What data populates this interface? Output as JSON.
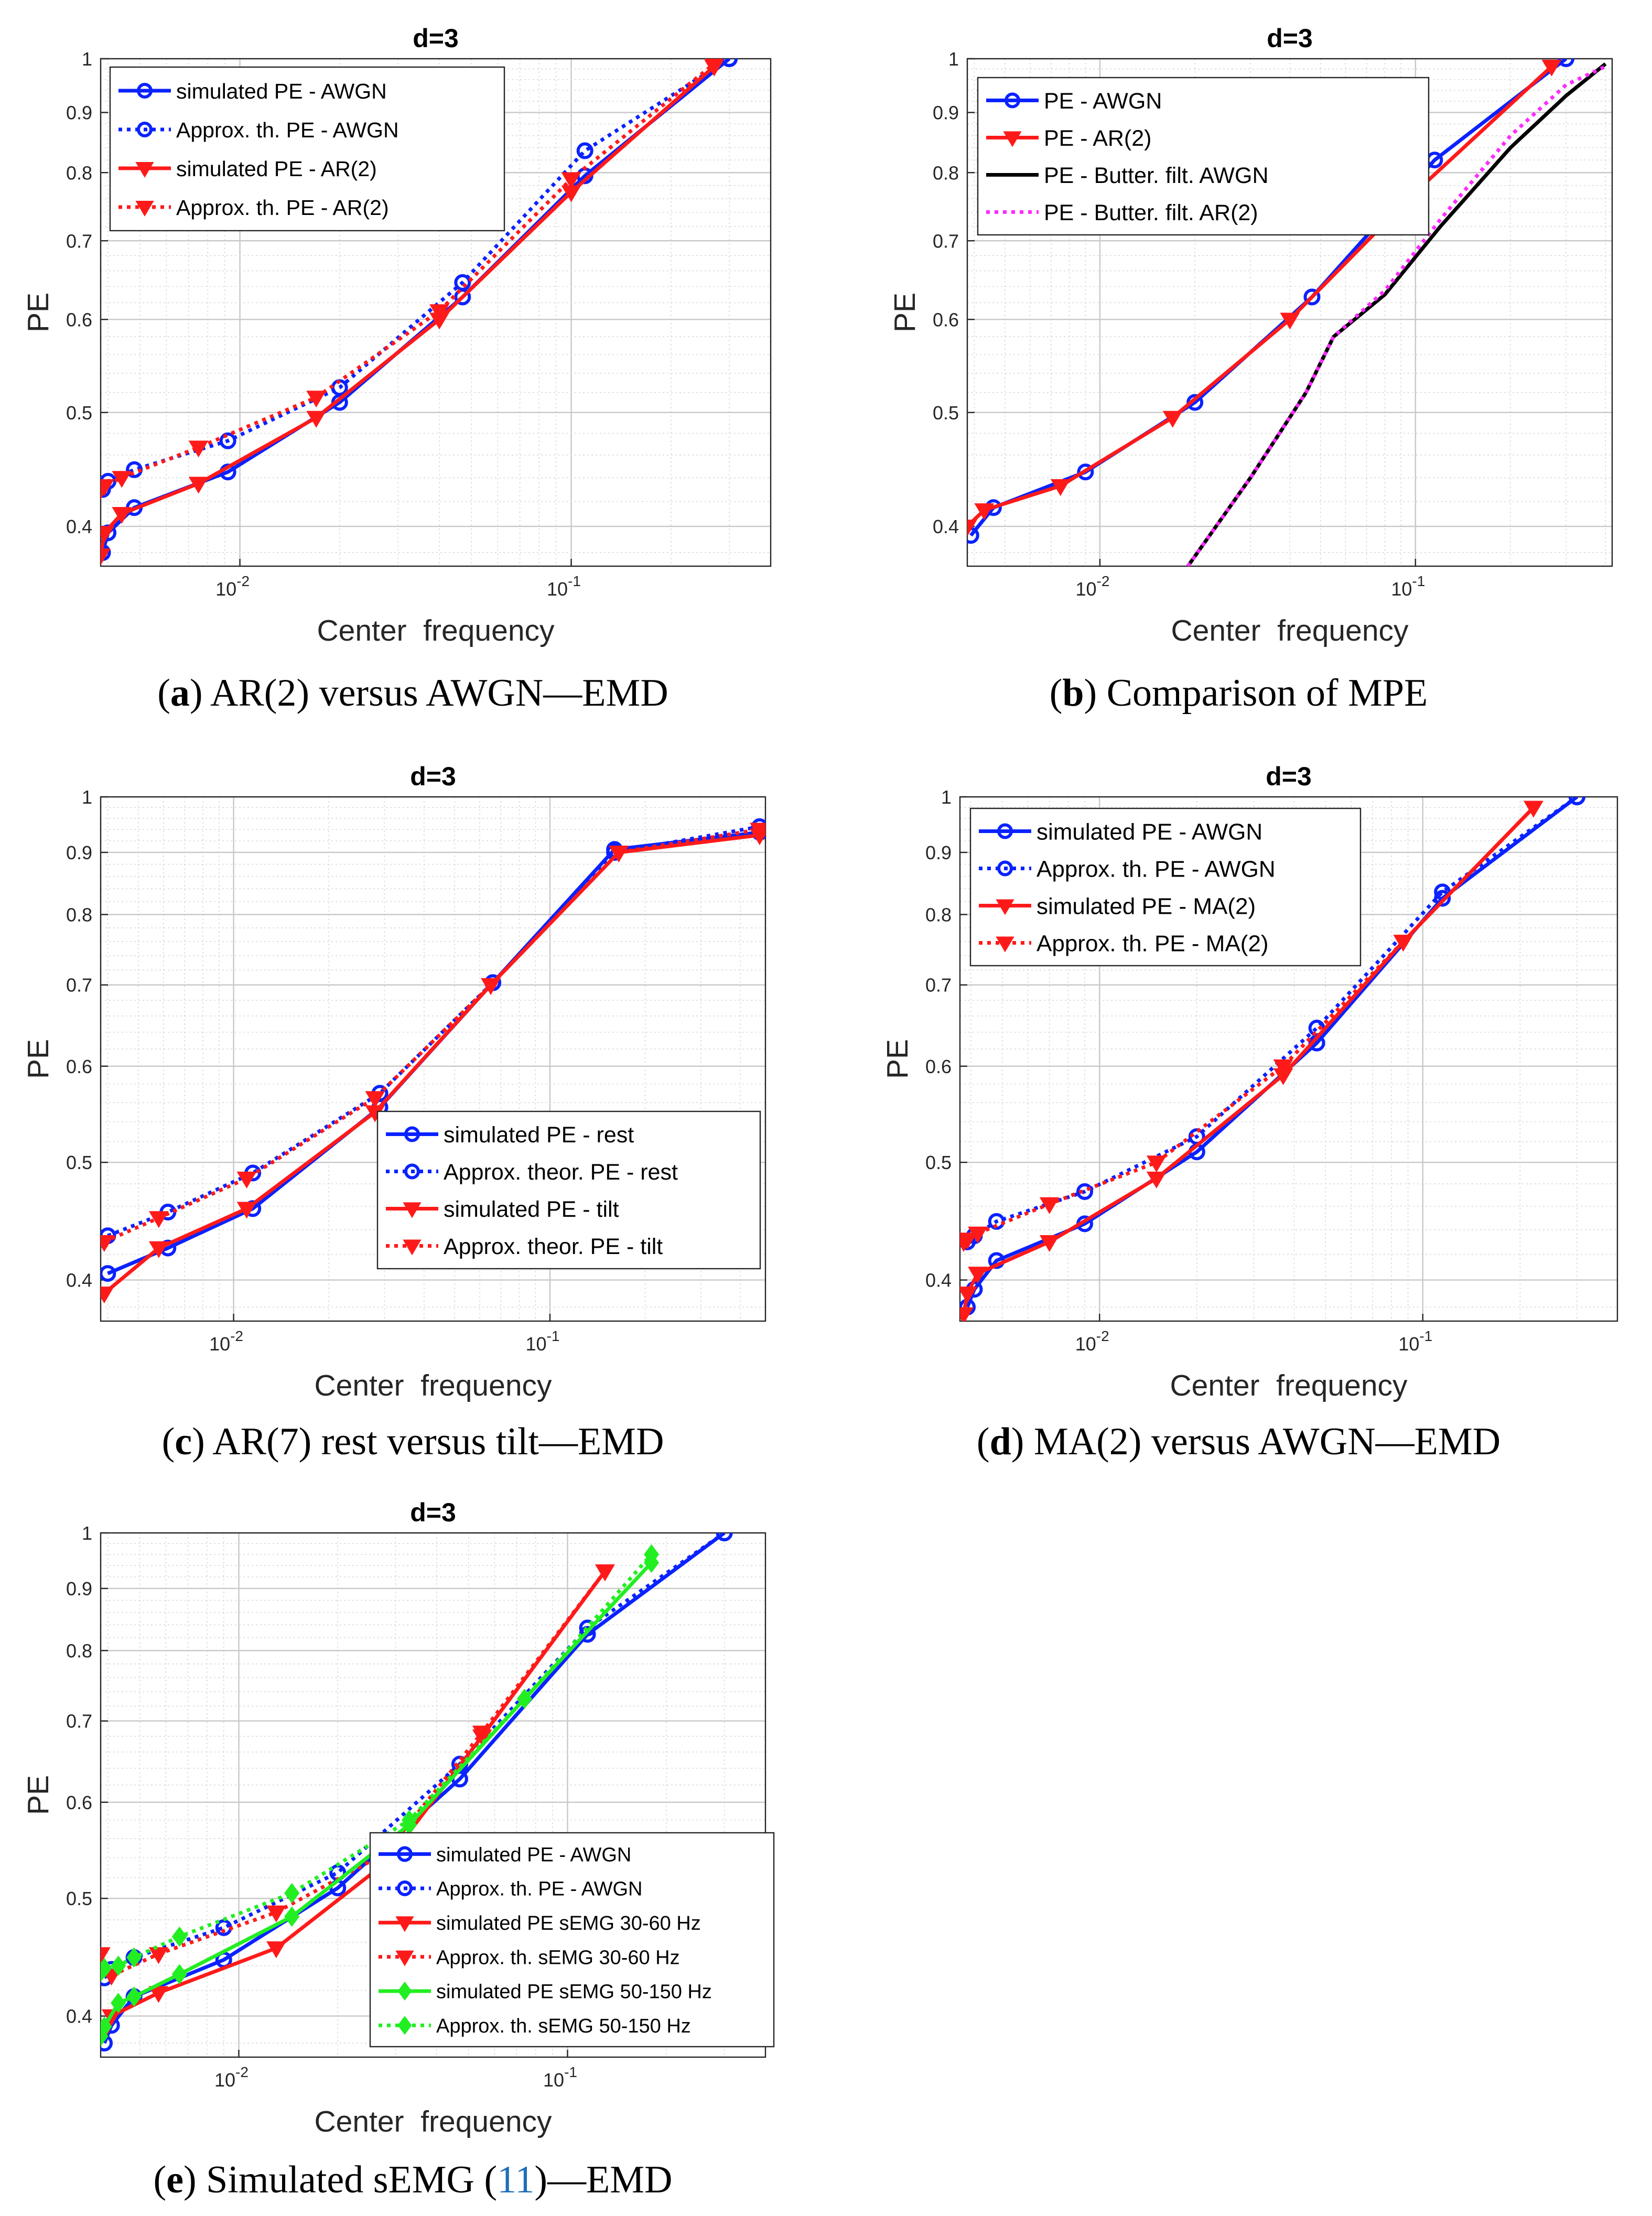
{
  "colors": {
    "blue": "#0a22ff",
    "red": "#ff1a1a",
    "black": "#000000",
    "magenta": "#ff2aff",
    "green": "#22ee22",
    "grid": "#d9d9d9",
    "cite": "#1f6fb6"
  },
  "chart_data": [
    {
      "id": "a",
      "type": "line",
      "title": "d=3",
      "xlabel": "Center  frequency",
      "ylabel": "PE",
      "xscale": "log",
      "yscale": "log",
      "xlim": [
        0.0038,
        0.4
      ],
      "ylim": [
        0.37,
        1.0
      ],
      "xticks": [
        {
          "v": 0.01,
          "label": "10",
          "exp": "-2"
        },
        {
          "v": 0.1,
          "label": "10",
          "exp": "-1"
        }
      ],
      "yticks": [
        {
          "v": 0.4,
          "label": "0.4"
        },
        {
          "v": 0.5,
          "label": "0.5"
        },
        {
          "v": 0.6,
          "label": "0.6"
        },
        {
          "v": 0.7,
          "label": "0.7"
        },
        {
          "v": 0.8,
          "label": "0.8"
        },
        {
          "v": 0.9,
          "label": "0.9"
        },
        {
          "v": 1.0,
          "label": "1"
        }
      ],
      "legend_position": "top-left",
      "caption": {
        "letter": "a",
        "text": " AR(2) versus AWGN—EMD"
      },
      "series": [
        {
          "name": "simulated PE - AWGN",
          "color": "#0a22ff",
          "dash": "solid",
          "marker": "circle",
          "x": [
            0.00385,
            0.004,
            0.0048,
            0.0092,
            0.02,
            0.047,
            0.11,
            0.3
          ],
          "y": [
            0.38,
            0.395,
            0.415,
            0.445,
            0.51,
            0.627,
            0.795,
            1.0
          ]
        },
        {
          "name": "Approx. th. PE - AWGN",
          "color": "#0a22ff",
          "dash": "dot",
          "marker": "circle",
          "x": [
            0.00385,
            0.004,
            0.0048,
            0.0092,
            0.02,
            0.047,
            0.11,
            0.3
          ],
          "y": [
            0.43,
            0.437,
            0.447,
            0.473,
            0.525,
            0.645,
            0.835,
            1.0
          ]
        },
        {
          "name": "simulated PE - AR(2)",
          "color": "#ff1a1a",
          "dash": "solid",
          "marker": "triangle",
          "x": [
            0.0038,
            0.0039,
            0.0044,
            0.0075,
            0.017,
            0.04,
            0.1,
            0.27
          ],
          "y": [
            0.378,
            0.395,
            0.41,
            0.435,
            0.495,
            0.6,
            0.77,
            0.985
          ]
        },
        {
          "name": "Approx. th. PE - AR(2)",
          "color": "#ff1a1a",
          "dash": "dot",
          "marker": "triangle",
          "x": [
            0.0038,
            0.0039,
            0.0044,
            0.0075,
            0.017,
            0.04,
            0.1,
            0.27
          ],
          "y": [
            0.43,
            0.433,
            0.44,
            0.467,
            0.515,
            0.61,
            0.79,
            0.99
          ]
        }
      ]
    },
    {
      "id": "b",
      "type": "line",
      "title": "d=3",
      "xlabel": "Center  frequency",
      "ylabel": "PE",
      "xscale": "log",
      "yscale": "log",
      "xlim": [
        0.0038,
        0.42
      ],
      "ylim": [
        0.37,
        1.0
      ],
      "xticks": [
        {
          "v": 0.01,
          "label": "10",
          "exp": "-2"
        },
        {
          "v": 0.1,
          "label": "10",
          "exp": "-1"
        }
      ],
      "yticks": [
        {
          "v": 0.4,
          "label": "0.4"
        },
        {
          "v": 0.5,
          "label": "0.5"
        },
        {
          "v": 0.6,
          "label": "0.6"
        },
        {
          "v": 0.7,
          "label": "0.7"
        },
        {
          "v": 0.8,
          "label": "0.8"
        },
        {
          "v": 0.9,
          "label": "0.9"
        },
        {
          "v": 1.0,
          "label": "1"
        }
      ],
      "legend_position": "top-left",
      "caption": {
        "letter": "b",
        "text": " Comparison of MPE"
      },
      "series": [
        {
          "name": "PE - AWGN",
          "color": "#0a22ff",
          "dash": "solid",
          "marker": "circle",
          "x": [
            0.0039,
            0.0046,
            0.009,
            0.02,
            0.047,
            0.115,
            0.3
          ],
          "y": [
            0.393,
            0.415,
            0.445,
            0.51,
            0.627,
            0.82,
            1.0
          ]
        },
        {
          "name": "PE - AR(2)",
          "color": "#ff1a1a",
          "dash": "solid",
          "marker": "triangle",
          "x": [
            0.0038,
            0.0043,
            0.0075,
            0.017,
            0.04,
            0.1,
            0.27
          ],
          "y": [
            0.4,
            0.413,
            0.433,
            0.495,
            0.6,
            0.77,
            0.985
          ]
        },
        {
          "name": "PE - Butter. filt. AWGN",
          "color": "#000000",
          "dash": "solid",
          "marker": "none",
          "x": [
            0.019,
            0.03,
            0.045,
            0.055,
            0.08,
            0.12,
            0.2,
            0.3,
            0.4
          ],
          "y": [
            0.37,
            0.44,
            0.52,
            0.58,
            0.63,
            0.72,
            0.84,
            0.93,
            0.99
          ]
        },
        {
          "name": "PE - Butter. filt. AR(2)",
          "color": "#ff2aff",
          "dash": "dot",
          "marker": "none",
          "x": [
            0.019,
            0.03,
            0.045,
            0.055,
            0.08,
            0.12,
            0.2,
            0.3,
            0.4
          ],
          "y": [
            0.37,
            0.44,
            0.52,
            0.58,
            0.635,
            0.73,
            0.86,
            0.95,
            0.985
          ]
        }
      ]
    },
    {
      "id": "c",
      "type": "line",
      "title": "d=3",
      "xlabel": "Center  frequency",
      "ylabel": "PE",
      "xscale": "log",
      "yscale": "log",
      "xlim": [
        0.0038,
        0.48
      ],
      "ylim": [
        0.37,
        1.0
      ],
      "xticks": [
        {
          "v": 0.01,
          "label": "10",
          "exp": "-2"
        },
        {
          "v": 0.1,
          "label": "10",
          "exp": "-1"
        }
      ],
      "yticks": [
        {
          "v": 0.4,
          "label": "0.4"
        },
        {
          "v": 0.5,
          "label": "0.5"
        },
        {
          "v": 0.6,
          "label": "0.6"
        },
        {
          "v": 0.7,
          "label": "0.7"
        },
        {
          "v": 0.8,
          "label": "0.8"
        },
        {
          "v": 0.9,
          "label": "0.9"
        },
        {
          "v": 1.0,
          "label": "1"
        }
      ],
      "legend_position": "bottom-right",
      "caption": {
        "letter": "c",
        "text": " AR(7) rest versus tilt—EMD"
      },
      "series": [
        {
          "name": "simulated PE - rest",
          "color": "#0a22ff",
          "dash": "solid",
          "marker": "circle",
          "x": [
            0.004,
            0.0062,
            0.0115,
            0.029,
            0.066,
            0.16,
            0.46
          ],
          "y": [
            0.405,
            0.425,
            0.458,
            0.555,
            0.703,
            0.905,
            0.935
          ]
        },
        {
          "name": "Approx. theor. PE - rest",
          "color": "#0a22ff",
          "dash": "dot",
          "marker": "circle",
          "x": [
            0.004,
            0.0062,
            0.0115,
            0.029,
            0.066,
            0.16,
            0.46
          ],
          "y": [
            0.435,
            0.455,
            0.49,
            0.57,
            0.703,
            0.9,
            0.945
          ]
        },
        {
          "name": "simulated PE - tilt",
          "color": "#ff1a1a",
          "dash": "solid",
          "marker": "triangle",
          "x": [
            0.0039,
            0.0058,
            0.011,
            0.028,
            0.065,
            0.165,
            0.46
          ],
          "y": [
            0.39,
            0.425,
            0.458,
            0.55,
            0.7,
            0.9,
            0.93
          ]
        },
        {
          "name": "Approx. theor. PE - tilt",
          "color": "#ff1a1a",
          "dash": "dot",
          "marker": "triangle",
          "x": [
            0.0039,
            0.0058,
            0.011,
            0.028,
            0.065,
            0.165,
            0.46
          ],
          "y": [
            0.43,
            0.45,
            0.485,
            0.565,
            0.7,
            0.9,
            0.94
          ]
        }
      ]
    },
    {
      "id": "d",
      "type": "line",
      "title": "d=3",
      "xlabel": "Center  frequency",
      "ylabel": "PE",
      "xscale": "log",
      "yscale": "log",
      "xlim": [
        0.0037,
        0.4
      ],
      "ylim": [
        0.37,
        1.0
      ],
      "xticks": [
        {
          "v": 0.01,
          "label": "10",
          "exp": "-2"
        },
        {
          "v": 0.1,
          "label": "10",
          "exp": "-1"
        }
      ],
      "yticks": [
        {
          "v": 0.4,
          "label": "0.4"
        },
        {
          "v": 0.5,
          "label": "0.5"
        },
        {
          "v": 0.6,
          "label": "0.6"
        },
        {
          "v": 0.7,
          "label": "0.7"
        },
        {
          "v": 0.8,
          "label": "0.8"
        },
        {
          "v": 0.9,
          "label": "0.9"
        },
        {
          "v": 1.0,
          "label": "1"
        }
      ],
      "legend_position": "top-left",
      "caption": {
        "letter": "d",
        "text": " MA(2) versus AWGN—EMD"
      },
      "series": [
        {
          "name": "simulated PE - AWGN",
          "color": "#0a22ff",
          "dash": "solid",
          "marker": "circle",
          "x": [
            0.0039,
            0.0041,
            0.0048,
            0.009,
            0.02,
            0.047,
            0.115,
            0.3
          ],
          "y": [
            0.38,
            0.393,
            0.415,
            0.445,
            0.51,
            0.627,
            0.825,
            1.0
          ]
        },
        {
          "name": "Approx. th. PE - AWGN",
          "color": "#0a22ff",
          "dash": "dot",
          "marker": "circle",
          "x": [
            0.0039,
            0.0041,
            0.0048,
            0.009,
            0.02,
            0.047,
            0.115,
            0.3
          ],
          "y": [
            0.43,
            0.435,
            0.447,
            0.473,
            0.525,
            0.645,
            0.835,
            1.0
          ]
        },
        {
          "name": "simulated PE - MA(2)",
          "color": "#ff1a1a",
          "dash": "solid",
          "marker": "triangle",
          "x": [
            0.0038,
            0.0039,
            0.0042,
            0.007,
            0.015,
            0.037,
            0.087,
            0.22
          ],
          "y": [
            0.375,
            0.39,
            0.405,
            0.43,
            0.485,
            0.59,
            0.76,
            0.98
          ]
        },
        {
          "name": "Approx. th. PE - MA(2)",
          "color": "#ff1a1a",
          "dash": "dot",
          "marker": "triangle",
          "x": [
            0.0038,
            0.0039,
            0.0042,
            0.007,
            0.015,
            0.037,
            0.087,
            0.22
          ],
          "y": [
            0.43,
            0.432,
            0.437,
            0.462,
            0.5,
            0.6,
            0.76,
            0.98
          ]
        }
      ]
    },
    {
      "id": "e",
      "type": "line",
      "title": "d=3",
      "xlabel": "Center  frequency",
      "ylabel": "PE",
      "xscale": "log",
      "yscale": "log",
      "xlim": [
        0.0038,
        0.4
      ],
      "ylim": [
        0.37,
        1.0
      ],
      "xticks": [
        {
          "v": 0.01,
          "label": "10",
          "exp": "-2"
        },
        {
          "v": 0.1,
          "label": "10",
          "exp": "-1"
        }
      ],
      "yticks": [
        {
          "v": 0.4,
          "label": "0.4"
        },
        {
          "v": 0.5,
          "label": "0.5"
        },
        {
          "v": 0.6,
          "label": "0.6"
        },
        {
          "v": 0.7,
          "label": "0.7"
        },
        {
          "v": 0.8,
          "label": "0.8"
        },
        {
          "v": 0.9,
          "label": "0.9"
        },
        {
          "v": 1.0,
          "label": "1"
        }
      ],
      "legend_position": "bottom-right",
      "caption": {
        "letter": "e",
        "text": " Simulated sEMG (",
        "cite": "11",
        "after": ")—EMD"
      },
      "series": [
        {
          "name": "simulated PE - AWGN",
          "color": "#0a22ff",
          "dash": "solid",
          "marker": "circle",
          "x": [
            0.0039,
            0.0041,
            0.0048,
            0.009,
            0.02,
            0.047,
            0.115,
            0.3
          ],
          "y": [
            0.38,
            0.393,
            0.415,
            0.445,
            0.51,
            0.627,
            0.825,
            1.0
          ]
        },
        {
          "name": "Approx. th. PE - AWGN",
          "color": "#0a22ff",
          "dash": "dot",
          "marker": "circle",
          "x": [
            0.0039,
            0.0041,
            0.0048,
            0.009,
            0.02,
            0.047,
            0.115,
            0.3
          ],
          "y": [
            0.43,
            0.437,
            0.447,
            0.473,
            0.525,
            0.645,
            0.835,
            1.0
          ]
        },
        {
          "name": "simulated PE sEMG 30-60 Hz",
          "color": "#ff1a1a",
          "dash": "solid",
          "marker": "triangle",
          "x": [
            0.0038,
            0.0041,
            0.0057,
            0.013,
            0.028,
            0.055,
            0.13
          ],
          "y": [
            0.385,
            0.4,
            0.418,
            0.455,
            0.535,
            0.68,
            0.93
          ]
        },
        {
          "name": "Approx. th. sEMG 30-60 Hz",
          "color": "#ff1a1a",
          "dash": "dot",
          "marker": "triangle",
          "x": [
            0.0038,
            0.0041,
            0.0057,
            0.013,
            0.028,
            0.055,
            0.13
          ],
          "y": [
            0.45,
            0.432,
            0.45,
            0.487,
            0.545,
            0.685,
            0.93
          ]
        },
        {
          "name": "simulated PE sEMG 50-150 Hz",
          "color": "#22ee22",
          "dash": "solid",
          "marker": "diamond",
          "x": [
            0.0038,
            0.0039,
            0.0043,
            0.0048,
            0.0066,
            0.0145,
            0.033,
            0.074,
            0.18
          ],
          "y": [
            0.385,
            0.392,
            0.41,
            0.415,
            0.433,
            0.483,
            0.575,
            0.73,
            0.945
          ]
        },
        {
          "name": "Approx. th. sEMG 50-150 Hz",
          "color": "#22ee22",
          "dash": "dot",
          "marker": "diamond",
          "x": [
            0.0038,
            0.0039,
            0.0043,
            0.0048,
            0.0066,
            0.0145,
            0.033,
            0.074,
            0.18
          ],
          "y": [
            0.435,
            0.438,
            0.44,
            0.447,
            0.465,
            0.505,
            0.58,
            0.73,
            0.96
          ]
        }
      ]
    }
  ]
}
